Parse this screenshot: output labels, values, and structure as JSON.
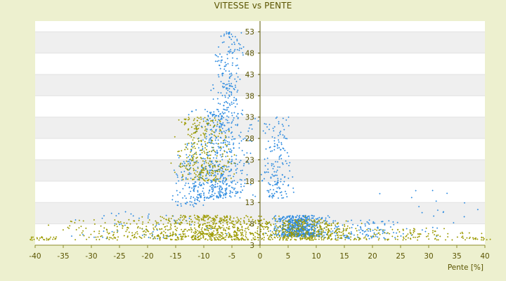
{
  "chart_data": {
    "type": "scatter",
    "title": "VITESSE vs PENTE",
    "xlabel": "Pente [%]",
    "ylabel": "",
    "xlim": [
      -40,
      40
    ],
    "ylim": [
      3,
      55.5
    ],
    "x_ticks": [
      -40,
      -35,
      -30,
      -25,
      -20,
      -15,
      -10,
      -5,
      0,
      5,
      10,
      15,
      20,
      25,
      30,
      35,
      40
    ],
    "y_ticks": [
      3,
      8,
      13,
      18,
      23,
      28,
      33,
      38,
      43,
      48,
      53
    ],
    "grid": "horizontal bands",
    "legend": "none",
    "series": [
      {
        "color": "#2f8ce0",
        "clusters": [
          {
            "x_center": -7,
            "x_spread": 4.5,
            "y_min": 14,
            "y_max": 35,
            "count": 520
          },
          {
            "x_center": -5.5,
            "x_spread": 2.2,
            "y_min": 35,
            "y_max": 53,
            "count": 160
          },
          {
            "x_center": -12,
            "x_spread": 3,
            "y_min": 12,
            "y_max": 27,
            "count": 140
          },
          {
            "x_center": 3,
            "x_spread": 2.2,
            "y_min": 14,
            "y_max": 33,
            "count": 160
          },
          {
            "x_center": 7,
            "x_spread": 4,
            "y_min": 5,
            "y_max": 10,
            "count": 650
          },
          {
            "x_center": 18,
            "x_spread": 7,
            "y_min": 4.5,
            "y_max": 9,
            "count": 110
          },
          {
            "x_center": -20,
            "x_spread": 12,
            "y_min": 4.5,
            "y_max": 11,
            "count": 60
          },
          {
            "x_center": 30,
            "x_spread": 7,
            "y_min": 5,
            "y_max": 17,
            "count": 25
          }
        ]
      },
      {
        "color": "#9c9a00",
        "clusters": [
          {
            "x_center": -10,
            "x_spread": 4,
            "y_min": 18,
            "y_max": 33,
            "count": 300
          },
          {
            "x_center": -8,
            "x_spread": 10,
            "y_min": 4.2,
            "y_max": 10,
            "count": 620
          },
          {
            "x_center": -25,
            "x_spread": 12,
            "y_min": 4.2,
            "y_max": 9,
            "count": 150
          },
          {
            "x_center": 8,
            "x_spread": 8,
            "y_min": 4.2,
            "y_max": 9,
            "count": 400
          },
          {
            "x_center": 25,
            "x_spread": 12,
            "y_min": 4.2,
            "y_max": 7,
            "count": 120
          },
          {
            "x_center": -38,
            "x_spread": 3,
            "y_min": 4.2,
            "y_max": 5,
            "count": 25
          },
          {
            "x_center": 39,
            "x_spread": 3,
            "y_min": 4.2,
            "y_max": 5,
            "count": 20
          }
        ]
      }
    ]
  }
}
